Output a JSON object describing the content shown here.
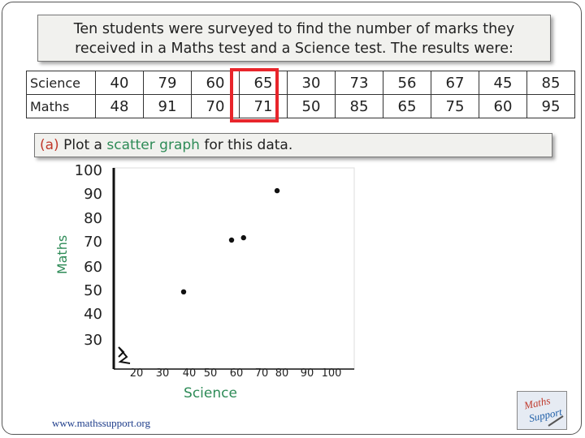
{
  "intro": {
    "line1": "Ten students were surveyed to find the number of marks they",
    "line2": "received in a Maths test and a Science test. The results were:"
  },
  "table": {
    "rows": [
      {
        "label": "Science",
        "values": [
          "40",
          "79",
          "60",
          "65",
          "30",
          "73",
          "56",
          "67",
          "45",
          "85"
        ]
      },
      {
        "label": "Maths",
        "values": [
          "48",
          "91",
          "70",
          "71",
          "50",
          "85",
          "65",
          "75",
          "60",
          "95"
        ]
      }
    ],
    "highlight_column": 4
  },
  "question": {
    "part": "(a)",
    "text_before": " Plot a ",
    "term": "scatter graph",
    "text_after": " for this data."
  },
  "chart_data": {
    "type": "scatter",
    "xlabel": "Science",
    "ylabel": "Maths",
    "x_ticks": [
      20,
      30,
      40,
      50,
      60,
      70,
      80,
      90,
      100
    ],
    "y_ticks": [
      100,
      90,
      80,
      70,
      60,
      50,
      40,
      30
    ],
    "series": [
      {
        "x": [
          40,
          60,
          65,
          79
        ],
        "y": [
          48,
          70,
          71,
          91
        ]
      }
    ],
    "grid": false,
    "colors": {
      "point": "#111111",
      "axis": "#111111",
      "frame": "#dddddd"
    }
  },
  "footer": {
    "url": "www.mathssupport.org"
  },
  "logo": {
    "text": "Maths Support",
    "colors": {
      "maths": "#c0392b",
      "support": "#1f5fa8"
    }
  }
}
